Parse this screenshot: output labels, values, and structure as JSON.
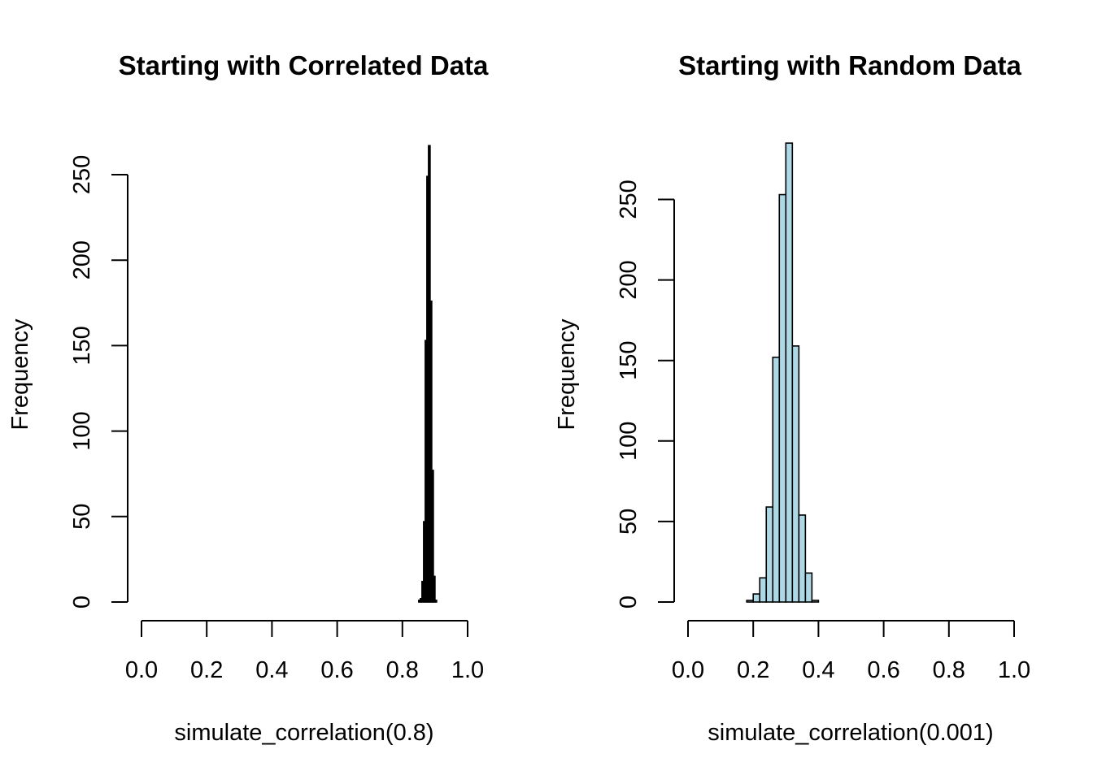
{
  "chart_data": [
    {
      "type": "bar",
      "title": "Starting with Correlated Data",
      "xlabel": "simulate_correlation(0.8)",
      "ylabel": "Frequency",
      "xlim": [
        0,
        1
      ],
      "ylim": [
        0,
        265
      ],
      "x_ticks": [
        "0.0",
        "0.2",
        "0.4",
        "0.6",
        "0.8",
        "1.0"
      ],
      "y_ticks": [
        "0",
        "50",
        "100",
        "150",
        "200",
        "250"
      ],
      "bar_fill": "#000000",
      "bar_stroke": "#000000",
      "bins": [
        {
          "x0": 0.85,
          "x1": 0.855,
          "count": 1
        },
        {
          "x0": 0.855,
          "x1": 0.86,
          "count": 2
        },
        {
          "x0": 0.86,
          "x1": 0.865,
          "count": 12
        },
        {
          "x0": 0.865,
          "x1": 0.87,
          "count": 47
        },
        {
          "x0": 0.87,
          "x1": 0.875,
          "count": 153
        },
        {
          "x0": 0.875,
          "x1": 0.88,
          "count": 249
        },
        {
          "x0": 0.88,
          "x1": 0.885,
          "count": 267
        },
        {
          "x0": 0.885,
          "x1": 0.89,
          "count": 176
        },
        {
          "x0": 0.89,
          "x1": 0.895,
          "count": 77
        },
        {
          "x0": 0.895,
          "x1": 0.9,
          "count": 15
        },
        {
          "x0": 0.9,
          "x1": 0.905,
          "count": 1
        }
      ]
    },
    {
      "type": "bar",
      "title": "Starting with Random Data",
      "xlabel": "simulate_correlation(0.001)",
      "ylabel": "Frequency",
      "xlim": [
        0,
        1
      ],
      "ylim": [
        0,
        285
      ],
      "x_ticks": [
        "0.0",
        "0.2",
        "0.4",
        "0.6",
        "0.8",
        "1.0"
      ],
      "y_ticks": [
        "0",
        "50",
        "100",
        "150",
        "200",
        "250"
      ],
      "bar_fill": "#add8e6",
      "bar_stroke": "#000000",
      "bins": [
        {
          "x0": 0.18,
          "x1": 0.2,
          "count": 1
        },
        {
          "x0": 0.2,
          "x1": 0.22,
          "count": 5
        },
        {
          "x0": 0.22,
          "x1": 0.24,
          "count": 15
        },
        {
          "x0": 0.24,
          "x1": 0.26,
          "count": 59
        },
        {
          "x0": 0.26,
          "x1": 0.28,
          "count": 152
        },
        {
          "x0": 0.28,
          "x1": 0.3,
          "count": 253
        },
        {
          "x0": 0.3,
          "x1": 0.32,
          "count": 285
        },
        {
          "x0": 0.32,
          "x1": 0.34,
          "count": 159
        },
        {
          "x0": 0.34,
          "x1": 0.36,
          "count": 54
        },
        {
          "x0": 0.36,
          "x1": 0.38,
          "count": 18
        },
        {
          "x0": 0.38,
          "x1": 0.4,
          "count": 1
        }
      ]
    }
  ]
}
